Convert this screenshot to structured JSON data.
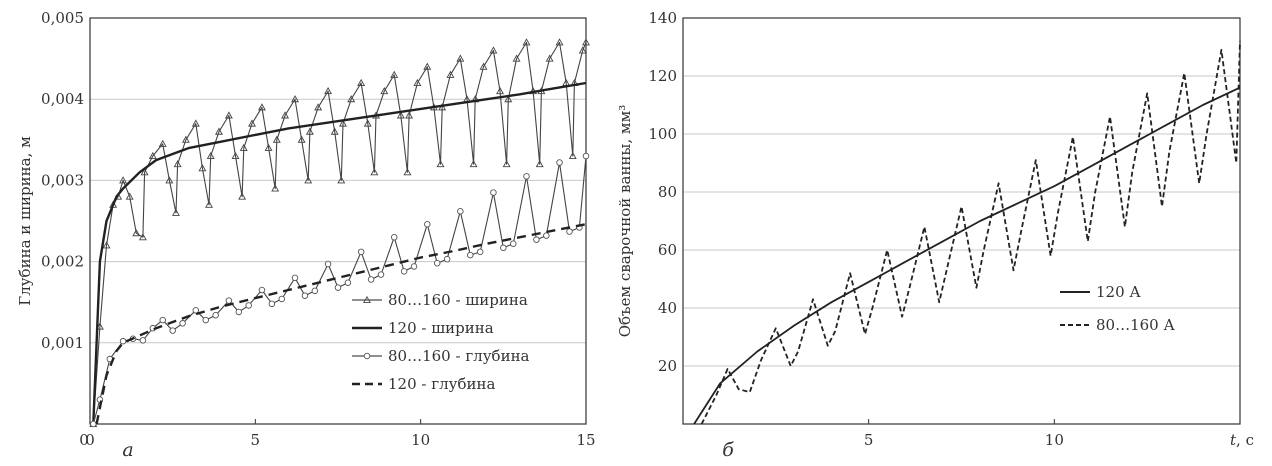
{
  "chart_data": [
    {
      "type": "line",
      "panel_label": "а",
      "xlabel": "",
      "ylabel": "Глубина и ширина, м",
      "xlim": [
        0,
        15
      ],
      "ylim": [
        0,
        0.005
      ],
      "x_ticks": [
        "0",
        "5",
        "10",
        "15"
      ],
      "y_ticks": [
        "0,001",
        "0,002",
        "0,003",
        "0,004",
        "0,005"
      ],
      "grid": "horizontal",
      "legend_position": "bottom-right",
      "series": [
        {
          "name": "80…160 - ширина",
          "style": "thin-triangles",
          "x": [
            0.1,
            0.3,
            0.5,
            0.7,
            0.85,
            1.0,
            1.2,
            1.4,
            1.6,
            1.65,
            1.9,
            2.2,
            2.4,
            2.6,
            2.65,
            2.9,
            3.2,
            3.4,
            3.6,
            3.65,
            3.9,
            4.2,
            4.4,
            4.6,
            4.65,
            4.9,
            5.2,
            5.4,
            5.6,
            5.65,
            5.9,
            6.2,
            6.4,
            6.6,
            6.65,
            6.9,
            7.2,
            7.4,
            7.6,
            7.65,
            7.9,
            8.2,
            8.4,
            8.6,
            8.65,
            8.9,
            9.2,
            9.4,
            9.6,
            9.65,
            9.9,
            10.2,
            10.4,
            10.6,
            10.65,
            10.9,
            11.2,
            11.4,
            11.6,
            11.65,
            11.9,
            12.2,
            12.4,
            12.6,
            12.65,
            12.9,
            13.2,
            13.4,
            13.6,
            13.65,
            13.9,
            14.2,
            14.4,
            14.6,
            14.65,
            14.9,
            15.0
          ],
          "y": [
            0.0,
            0.0012,
            0.0022,
            0.0027,
            0.0028,
            0.003,
            0.0028,
            0.00235,
            0.0023,
            0.0031,
            0.0033,
            0.00345,
            0.003,
            0.0026,
            0.0032,
            0.0035,
            0.0037,
            0.00315,
            0.0027,
            0.0033,
            0.0036,
            0.0038,
            0.0033,
            0.0028,
            0.0034,
            0.0037,
            0.0039,
            0.0034,
            0.0029,
            0.0035,
            0.0038,
            0.004,
            0.0035,
            0.003,
            0.0036,
            0.0039,
            0.0041,
            0.0036,
            0.003,
            0.0037,
            0.004,
            0.0042,
            0.0037,
            0.0031,
            0.0038,
            0.0041,
            0.0043,
            0.0038,
            0.0031,
            0.0038,
            0.0042,
            0.0044,
            0.0039,
            0.0032,
            0.0039,
            0.0043,
            0.0045,
            0.004,
            0.0032,
            0.004,
            0.0044,
            0.0046,
            0.0041,
            0.0032,
            0.004,
            0.0045,
            0.0047,
            0.0041,
            0.0032,
            0.0041,
            0.0045,
            0.0047,
            0.0042,
            0.0033,
            0.0042,
            0.0046,
            0.0047
          ]
        },
        {
          "name": "120 - ширина",
          "style": "thick-solid",
          "x": [
            0.1,
            0.3,
            0.5,
            0.8,
            1.0,
            1.5,
            2.0,
            3.0,
            4.0,
            5.0,
            6.0,
            7.0,
            8.0,
            9.0,
            10.0,
            11.0,
            12.0,
            13.0,
            14.0,
            15.0
          ],
          "y": [
            0.0,
            0.002,
            0.0025,
            0.0028,
            0.0029,
            0.0031,
            0.00325,
            0.0034,
            0.00348,
            0.00356,
            0.00364,
            0.0037,
            0.00376,
            0.00382,
            0.00388,
            0.00394,
            0.004,
            0.00406,
            0.00413,
            0.0042
          ]
        },
        {
          "name": "80…160 - глубина",
          "style": "thin-circles",
          "x": [
            0.1,
            0.3,
            0.6,
            1.0,
            1.3,
            1.6,
            1.9,
            2.2,
            2.5,
            2.8,
            3.2,
            3.5,
            3.8,
            4.2,
            4.5,
            4.8,
            5.2,
            5.5,
            5.8,
            6.2,
            6.5,
            6.8,
            7.2,
            7.5,
            7.8,
            8.2,
            8.5,
            8.8,
            9.2,
            9.5,
            9.8,
            10.2,
            10.5,
            10.8,
            11.2,
            11.5,
            11.8,
            12.2,
            12.5,
            12.8,
            13.2,
            13.5,
            13.8,
            14.2,
            14.5,
            14.8,
            15.0
          ],
          "y": [
            0.0,
            0.0003,
            0.0008,
            0.00102,
            0.00105,
            0.00103,
            0.00118,
            0.00128,
            0.00115,
            0.00124,
            0.0014,
            0.00128,
            0.00134,
            0.00152,
            0.00138,
            0.00146,
            0.00165,
            0.00148,
            0.00154,
            0.0018,
            0.00158,
            0.00164,
            0.00197,
            0.00168,
            0.00174,
            0.00212,
            0.00178,
            0.00184,
            0.0023,
            0.00188,
            0.00194,
            0.00246,
            0.00198,
            0.00203,
            0.00262,
            0.00208,
            0.00212,
            0.00285,
            0.00217,
            0.00222,
            0.00305,
            0.00227,
            0.00232,
            0.00322,
            0.00237,
            0.00242,
            0.0033
          ]
        },
        {
          "name": "120 - глубина",
          "style": "thick-dashed",
          "x": [
            0.2,
            0.5,
            0.8,
            1.0,
            2.0,
            3.0,
            4.0,
            5.0,
            6.0,
            7.0,
            8.0,
            9.0,
            10.0,
            11.0,
            12.0,
            13.0,
            14.0,
            15.0
          ],
          "y": [
            0.0,
            0.0006,
            0.0009,
            0.001,
            0.00118,
            0.00133,
            0.00145,
            0.00155,
            0.00165,
            0.00175,
            0.00185,
            0.00195,
            0.00205,
            0.00213,
            0.00222,
            0.0023,
            0.00238,
            0.00246
          ]
        }
      ]
    },
    {
      "type": "line",
      "panel_label": "б",
      "xlabel": "t, с",
      "ylabel": "Объем сварочной ванны, мм³",
      "xlim": [
        0,
        15
      ],
      "ylim": [
        0,
        140
      ],
      "x_ticks": [
        "5",
        "10"
      ],
      "y_ticks": [
        "20",
        "40",
        "60",
        "80",
        "100",
        "120",
        "140"
      ],
      "grid": "horizontal",
      "legend_position": "center-right",
      "series": [
        {
          "name": "120 А",
          "style": "solid",
          "x": [
            0.3,
            1,
            2,
            3,
            4,
            5,
            6,
            7,
            8,
            9,
            10,
            11,
            12,
            13,
            14,
            15
          ],
          "y": [
            0,
            14,
            25,
            34,
            42,
            49,
            56,
            63,
            70,
            76,
            82,
            89,
            96,
            103,
            110,
            116
          ]
        },
        {
          "name": "80…160 А",
          "style": "dashed",
          "x": [
            0.5,
            0.9,
            1.2,
            1.5,
            1.8,
            2.1,
            2.5,
            2.9,
            3.1,
            3.5,
            3.9,
            4.1,
            4.5,
            4.9,
            5.1,
            5.5,
            5.9,
            6.1,
            6.5,
            6.9,
            7.1,
            7.5,
            7.9,
            8.1,
            8.5,
            8.9,
            9.1,
            9.5,
            9.9,
            10.1,
            10.5,
            10.9,
            11.1,
            11.5,
            11.9,
            12.1,
            12.5,
            12.9,
            13.1,
            13.5,
            13.9,
            14.1,
            14.5,
            14.9,
            15.0
          ],
          "y": [
            0,
            10,
            19,
            12,
            11,
            22,
            33,
            20,
            25,
            43,
            27,
            32,
            52,
            31,
            40,
            60,
            37,
            47,
            68,
            42,
            53,
            75,
            47,
            60,
            83,
            53,
            66,
            91,
            58,
            73,
            99,
            63,
            80,
            106,
            68,
            87,
            114,
            75,
            94,
            121,
            83,
            100,
            129,
            90,
            132
          ]
        }
      ]
    }
  ]
}
